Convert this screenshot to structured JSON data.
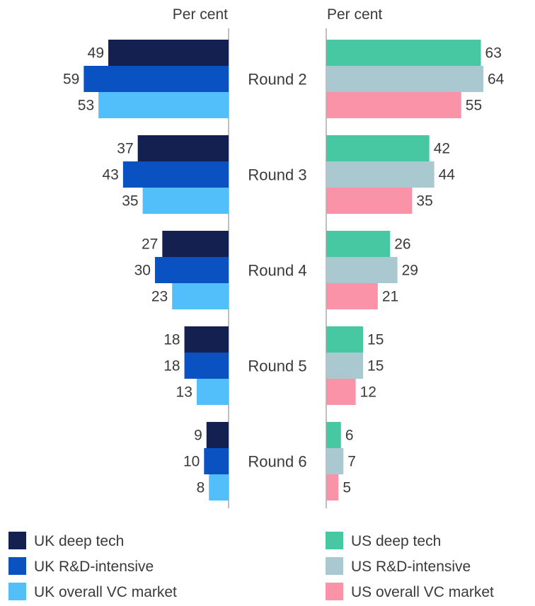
{
  "chart_data": {
    "type": "bar",
    "orientation": "horizontal-butterfly",
    "panels": [
      {
        "side": "left",
        "unit_label": "Per cent",
        "series": [
          {
            "name": "UK deep tech",
            "color": "#14204f",
            "values": [
              49,
              37,
              27,
              18,
              9
            ]
          },
          {
            "name": "UK R&D-intensive",
            "color": "#0a52c2",
            "values": [
              59,
              43,
              30,
              18,
              10
            ]
          },
          {
            "name": "UK overall VC market",
            "color": "#52befa",
            "values": [
              53,
              35,
              23,
              13,
              8
            ]
          }
        ]
      },
      {
        "side": "right",
        "unit_label": "Per cent",
        "series": [
          {
            "name": "US deep tech",
            "color": "#47c7a2",
            "values": [
              63,
              42,
              26,
              15,
              6
            ]
          },
          {
            "name": "US R&D-intensive",
            "color": "#a9c8d0",
            "values": [
              64,
              44,
              29,
              15,
              7
            ]
          },
          {
            "name": "US overall VC market",
            "color": "#fa93a8",
            "values": [
              55,
              35,
              21,
              12,
              5
            ]
          }
        ]
      }
    ],
    "categories": [
      "Round 2",
      "Round 3",
      "Round 4",
      "Round 5",
      "Round 6"
    ],
    "xlim": [
      0,
      64
    ],
    "grid": false,
    "legend_placement": "bottom"
  }
}
